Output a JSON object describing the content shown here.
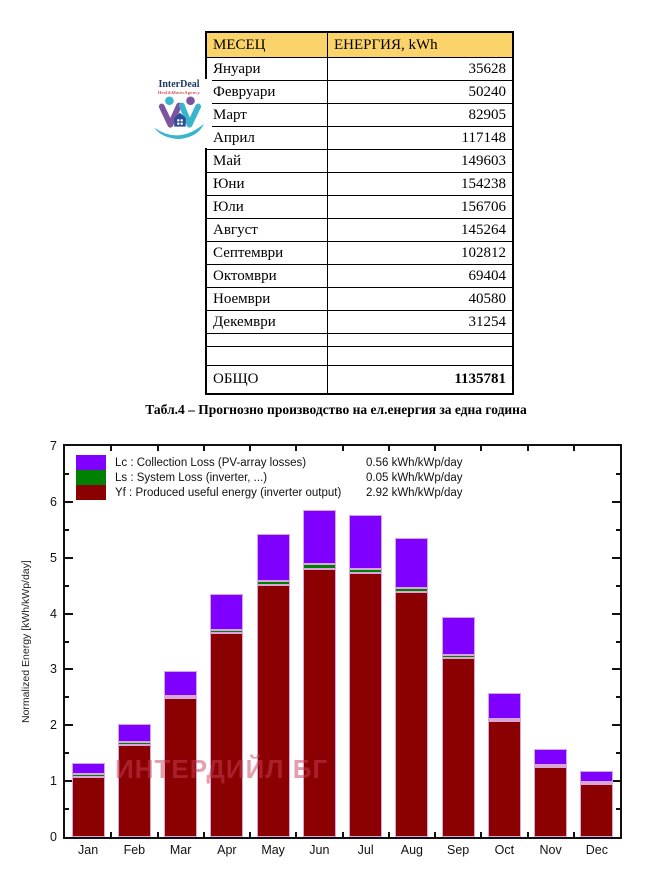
{
  "colors": {
    "table_header_bg": "#FBD36B",
    "lc_purple": "#7F00FF",
    "ls_green": "#008000",
    "yf_darkred": "#8B0000",
    "bar_outline": "#D9A6D9",
    "watermark": "rgba(199,63,88,0.5)",
    "logo_teal": "#3AB6CC",
    "logo_purple": "#7B559E",
    "logo_navy": "#2F4C9B"
  },
  "logo": {
    "title": "InterDeal",
    "subtitle": "HealthMatesAgency"
  },
  "table": {
    "headers": [
      "МЕСЕЦ",
      "ЕНЕРГИЯ, kWh"
    ],
    "rows": [
      [
        "Януари",
        "35628"
      ],
      [
        "Февруари",
        "50240"
      ],
      [
        "Март",
        "82905"
      ],
      [
        "Април",
        "117148"
      ],
      [
        "Май",
        "149603"
      ],
      [
        "Юни",
        "154238"
      ],
      [
        "Юли",
        "156706"
      ],
      [
        "Август",
        "145264"
      ],
      [
        "Септември",
        "102812"
      ],
      [
        "Октомври",
        "69404"
      ],
      [
        "Ноември",
        "40580"
      ],
      [
        "Декември",
        "31254"
      ]
    ],
    "empty_row_heights": [
      12,
      18
    ],
    "total_label": "ОБЩО",
    "total_value": "1135781"
  },
  "caption": "Табл.4 – Прогнозно производство на ел.енергия за една година",
  "watermark": "ИНТЕРДИЙЛ БГ",
  "chart_data": {
    "type": "bar",
    "stacked": true,
    "categories": [
      "Jan",
      "Feb",
      "Mar",
      "Apr",
      "May",
      "Jun",
      "Jul",
      "Aug",
      "Sep",
      "Oct",
      "Nov",
      "Dec"
    ],
    "series": [
      {
        "name": "Yf",
        "label": "Yf : Produced useful energy  (inverter output)",
        "value_note": "2.92 kWh/kWp/day",
        "color": "#8B0000",
        "values": [
          1.07,
          1.65,
          2.48,
          3.65,
          4.52,
          4.8,
          4.72,
          4.38,
          3.2,
          2.08,
          1.25,
          0.95
        ]
      },
      {
        "name": "Ls",
        "label": "Ls : System Loss  (inverter, ...)",
        "value_note": "0.05 kWh/kWp/day",
        "color": "#008000",
        "values": [
          0.05,
          0.05,
          0.05,
          0.06,
          0.06,
          0.08,
          0.07,
          0.07,
          0.06,
          0.04,
          0.04,
          0.04
        ]
      },
      {
        "name": "Lc",
        "label": "Lc : Collection Loss (PV-array losses)",
        "value_note": "0.56 kWh/kWp/day",
        "color": "#7F00FF",
        "values": [
          0.21,
          0.32,
          0.44,
          0.64,
          0.84,
          0.97,
          0.98,
          0.91,
          0.67,
          0.45,
          0.29,
          0.19
        ]
      }
    ],
    "totals": [
      1.33,
      2.02,
      2.97,
      4.35,
      5.42,
      5.85,
      5.77,
      5.36,
      3.93,
      2.57,
      1.58,
      1.18
    ],
    "title": "",
    "xlabel": "",
    "ylabel": "Normalized Energy [kWh/kWp/day]",
    "ylim": [
      0,
      7
    ],
    "yticks": [
      0,
      1,
      2,
      3,
      4,
      5,
      6,
      7
    ],
    "minor_ytick_step": 0.5,
    "grid": false,
    "legend_position": "top-left",
    "legend_order": [
      "Lc",
      "Ls",
      "Yf"
    ]
  }
}
